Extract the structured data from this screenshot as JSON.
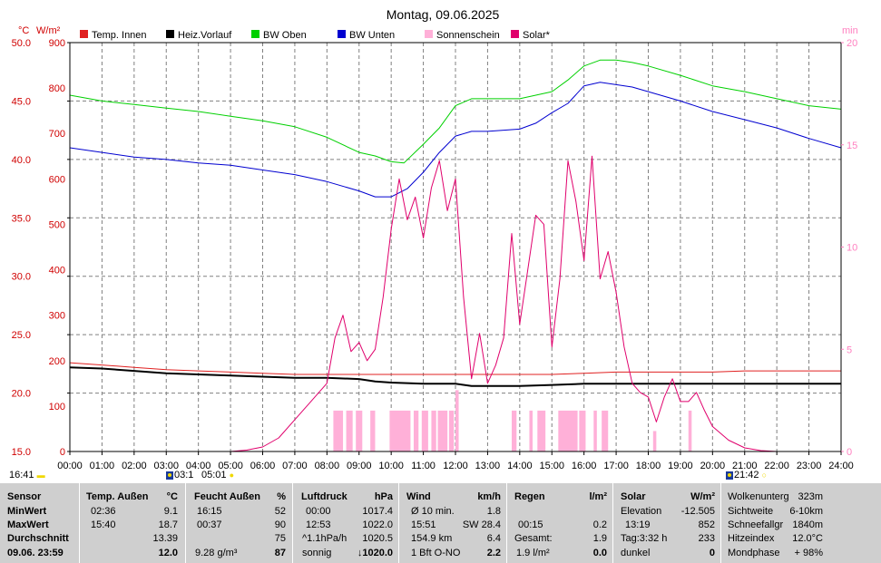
{
  "chart_data": {
    "type": "line",
    "title": "Montag, 09.06.2025",
    "left_axis_units": {
      "temp": "°C",
      "solar": "W/m²"
    },
    "right_axis_units": "min",
    "temp_ticks": [
      "50.0",
      "45.0",
      "40.0",
      "35.0",
      "30.0",
      "25.0",
      "20.0",
      "15.0"
    ],
    "solar_ticks": [
      "900",
      "800",
      "700",
      "600",
      "500",
      "400",
      "300",
      "200",
      "100",
      "0"
    ],
    "min_ticks": [
      "20",
      "15",
      "10",
      "5",
      "0"
    ],
    "x_ticks": [
      "00:00",
      "01:00",
      "02:00",
      "03:00",
      "04:00",
      "05:00",
      "06:00",
      "07:00",
      "08:00",
      "09:00",
      "10:00",
      "11:00",
      "12:00",
      "13:00",
      "14:00",
      "15:00",
      "16:00",
      "17:00",
      "18:00",
      "19:00",
      "20:00",
      "21:00",
      "22:00",
      "23:00",
      "24:00"
    ],
    "ylim_temp": [
      15,
      50
    ],
    "ylim_solar": [
      0,
      900
    ],
    "ylim_min": [
      0,
      20
    ],
    "xlim_hours": [
      0,
      24
    ],
    "legend": [
      {
        "name": "Temp. Innen",
        "color": "#e02020"
      },
      {
        "name": "Heiz.Vorlauf",
        "color": "#000000"
      },
      {
        "name": "BW Oben",
        "color": "#00d000"
      },
      {
        "name": "BW Unten",
        "color": "#0000d0"
      },
      {
        "name": "Sonnenschein",
        "color": "#ffb0d8"
      },
      {
        "name": "Solar*",
        "color": "#e0006c"
      }
    ],
    "series": [
      {
        "name": "BW Oben",
        "axis": "temp",
        "color": "#00d000",
        "points": [
          [
            0,
            45.5
          ],
          [
            1,
            45.0
          ],
          [
            2,
            44.7
          ],
          [
            3,
            44.4
          ],
          [
            4,
            44.1
          ],
          [
            5,
            43.7
          ],
          [
            6,
            43.3
          ],
          [
            7,
            42.8
          ],
          [
            8,
            41.9
          ],
          [
            9,
            40.6
          ],
          [
            9.5,
            40.3
          ],
          [
            10,
            39.8
          ],
          [
            10.4,
            39.7
          ],
          [
            11,
            41.3
          ],
          [
            11.5,
            42.7
          ],
          [
            12,
            44.6
          ],
          [
            12.5,
            45.2
          ],
          [
            13,
            45.2
          ],
          [
            14,
            45.2
          ],
          [
            15,
            45.8
          ],
          [
            15.5,
            46.8
          ],
          [
            16,
            48.0
          ],
          [
            16.5,
            48.5
          ],
          [
            17,
            48.5
          ],
          [
            17.5,
            48.3
          ],
          [
            18,
            48.0
          ],
          [
            19,
            47.2
          ],
          [
            20,
            46.3
          ],
          [
            21,
            45.8
          ],
          [
            22,
            45.2
          ],
          [
            23,
            44.6
          ],
          [
            24,
            44.3
          ]
        ]
      },
      {
        "name": "BW Unten",
        "axis": "temp",
        "color": "#0000d0",
        "points": [
          [
            0,
            41.0
          ],
          [
            1,
            40.6
          ],
          [
            2,
            40.2
          ],
          [
            3,
            40.0
          ],
          [
            4,
            39.7
          ],
          [
            5,
            39.5
          ],
          [
            6,
            39.1
          ],
          [
            7,
            38.7
          ],
          [
            8,
            38.1
          ],
          [
            9,
            37.3
          ],
          [
            9.5,
            36.8
          ],
          [
            10,
            36.8
          ],
          [
            10.5,
            37.5
          ],
          [
            11,
            38.9
          ],
          [
            11.5,
            40.6
          ],
          [
            12,
            42.0
          ],
          [
            12.5,
            42.4
          ],
          [
            13,
            42.4
          ],
          [
            14,
            42.6
          ],
          [
            14.5,
            43.1
          ],
          [
            15,
            44.0
          ],
          [
            15.5,
            44.8
          ],
          [
            16,
            46.3
          ],
          [
            16.5,
            46.6
          ],
          [
            17,
            46.4
          ],
          [
            17.5,
            46.2
          ],
          [
            18,
            45.8
          ],
          [
            19,
            45.0
          ],
          [
            20,
            44.1
          ],
          [
            21,
            43.4
          ],
          [
            22,
            42.7
          ],
          [
            23,
            41.8
          ],
          [
            24,
            41.0
          ]
        ]
      },
      {
        "name": "Temp. Innen",
        "axis": "temp",
        "color": "#e02020",
        "points": [
          [
            0,
            22.6
          ],
          [
            1,
            22.4
          ],
          [
            2,
            22.2
          ],
          [
            3,
            22.0
          ],
          [
            4,
            21.9
          ],
          [
            5,
            21.8
          ],
          [
            6,
            21.7
          ],
          [
            7,
            21.6
          ],
          [
            8,
            21.6
          ],
          [
            9,
            21.6
          ],
          [
            10,
            21.6
          ],
          [
            11,
            21.6
          ],
          [
            12,
            21.6
          ],
          [
            13,
            21.6
          ],
          [
            14,
            21.6
          ],
          [
            15,
            21.6
          ],
          [
            16,
            21.7
          ],
          [
            17,
            21.8
          ],
          [
            18,
            21.8
          ],
          [
            19,
            21.8
          ],
          [
            20,
            21.8
          ],
          [
            21,
            21.9
          ],
          [
            22,
            21.9
          ],
          [
            23,
            21.9
          ],
          [
            24,
            21.9
          ]
        ]
      },
      {
        "name": "Heiz.Vorlauf",
        "axis": "temp",
        "color": "#000000",
        "points": [
          [
            0,
            22.2
          ],
          [
            1,
            22.1
          ],
          [
            2,
            21.9
          ],
          [
            3,
            21.7
          ],
          [
            4,
            21.6
          ],
          [
            5,
            21.5
          ],
          [
            6,
            21.4
          ],
          [
            7,
            21.3
          ],
          [
            8,
            21.3
          ],
          [
            9,
            21.2
          ],
          [
            9.5,
            21.0
          ],
          [
            10,
            20.9
          ],
          [
            11,
            20.8
          ],
          [
            12,
            20.8
          ],
          [
            12.5,
            20.6
          ],
          [
            13,
            20.6
          ],
          [
            14,
            20.6
          ],
          [
            15,
            20.7
          ],
          [
            16,
            20.8
          ],
          [
            17,
            20.8
          ],
          [
            18,
            20.8
          ],
          [
            19,
            20.8
          ],
          [
            20,
            20.8
          ],
          [
            21,
            20.8
          ],
          [
            22,
            20.8
          ],
          [
            23,
            20.8
          ],
          [
            24,
            20.8
          ]
        ]
      },
      {
        "name": "Solar*",
        "axis": "solar",
        "color": "#e0006c",
        "points": [
          [
            5.0,
            0
          ],
          [
            5.5,
            3
          ],
          [
            6.0,
            10
          ],
          [
            6.5,
            30
          ],
          [
            7.0,
            70
          ],
          [
            7.5,
            110
          ],
          [
            8.0,
            150
          ],
          [
            8.25,
            250
          ],
          [
            8.5,
            300
          ],
          [
            8.75,
            220
          ],
          [
            9.0,
            240
          ],
          [
            9.25,
            200
          ],
          [
            9.5,
            225
          ],
          [
            9.75,
            340
          ],
          [
            10.0,
            490
          ],
          [
            10.25,
            600
          ],
          [
            10.5,
            510
          ],
          [
            10.75,
            560
          ],
          [
            11.0,
            470
          ],
          [
            11.25,
            580
          ],
          [
            11.5,
            640
          ],
          [
            11.75,
            530
          ],
          [
            12.0,
            600
          ],
          [
            12.25,
            340
          ],
          [
            12.5,
            160
          ],
          [
            12.75,
            260
          ],
          [
            13.0,
            150
          ],
          [
            13.25,
            190
          ],
          [
            13.5,
            250
          ],
          [
            13.75,
            480
          ],
          [
            14.0,
            280
          ],
          [
            14.25,
            400
          ],
          [
            14.5,
            520
          ],
          [
            14.75,
            500
          ],
          [
            15.0,
            230
          ],
          [
            15.25,
            380
          ],
          [
            15.5,
            640
          ],
          [
            15.75,
            550
          ],
          [
            16.0,
            420
          ],
          [
            16.25,
            650
          ],
          [
            16.5,
            380
          ],
          [
            16.75,
            440
          ],
          [
            17.0,
            350
          ],
          [
            17.25,
            230
          ],
          [
            17.5,
            150
          ],
          [
            17.75,
            130
          ],
          [
            18.0,
            120
          ],
          [
            18.25,
            65
          ],
          [
            18.5,
            120
          ],
          [
            18.75,
            160
          ],
          [
            19.0,
            110
          ],
          [
            19.25,
            110
          ],
          [
            19.5,
            130
          ],
          [
            19.75,
            90
          ],
          [
            20.0,
            55
          ],
          [
            20.5,
            25
          ],
          [
            21.0,
            8
          ],
          [
            21.5,
            2
          ],
          [
            22.0,
            0
          ]
        ]
      }
    ],
    "sunshine_bars": [
      {
        "from": 8.2,
        "to": 8.5,
        "minutes": 2
      },
      {
        "from": 8.6,
        "to": 8.8,
        "minutes": 2
      },
      {
        "from": 8.9,
        "to": 9.1,
        "minutes": 2
      },
      {
        "from": 9.35,
        "to": 9.5,
        "minutes": 2
      },
      {
        "from": 9.95,
        "to": 10.6,
        "minutes": 2
      },
      {
        "from": 10.7,
        "to": 10.85,
        "minutes": 2
      },
      {
        "from": 10.95,
        "to": 11.15,
        "minutes": 2
      },
      {
        "from": 11.25,
        "to": 11.4,
        "minutes": 2
      },
      {
        "from": 11.45,
        "to": 11.75,
        "minutes": 2
      },
      {
        "from": 11.8,
        "to": 11.95,
        "minutes": 2
      },
      {
        "from": 12.0,
        "to": 12.1,
        "minutes": 3
      },
      {
        "from": 13.75,
        "to": 13.9,
        "minutes": 2
      },
      {
        "from": 14.3,
        "to": 14.4,
        "minutes": 2
      },
      {
        "from": 14.55,
        "to": 14.8,
        "minutes": 2
      },
      {
        "from": 15.2,
        "to": 15.8,
        "minutes": 2
      },
      {
        "from": 15.85,
        "to": 16.05,
        "minutes": 2
      },
      {
        "from": 16.3,
        "to": 16.4,
        "minutes": 2
      },
      {
        "from": 16.55,
        "to": 16.75,
        "minutes": 2
      },
      {
        "from": 18.15,
        "to": 18.25,
        "minutes": 1
      },
      {
        "from": 19.25,
        "to": 19.35,
        "minutes": 2
      }
    ]
  },
  "markers": {
    "sunrise": "16:41",
    "moonrise": "03:1",
    "twilight": "05:01",
    "moonset": "21:42"
  },
  "stats": {
    "sensor": {
      "header": "Sensor",
      "rows": [
        "MinWert",
        "MaxWert",
        "Durchschnitt",
        "09.06. 23:59"
      ]
    },
    "temp_aussen": {
      "header": "Temp. Außen",
      "unit": "°C",
      "times": [
        "02:36",
        "15:40",
        ""
      ],
      "values": [
        "9.1",
        "18.7",
        "13.39"
      ],
      "current": "12.0"
    },
    "feucht_aussen": {
      "header": "Feucht Außen",
      "unit": "%",
      "times": [
        "16:15",
        "00:37",
        ""
      ],
      "values": [
        "52",
        "90",
        "75"
      ],
      "current_left": "9.28 g/m³",
      "current": "87"
    },
    "luftdruck": {
      "header": "Luftdruck",
      "unit": "hPa",
      "times": [
        "00:00",
        "12:53",
        "^1.1hPa/h"
      ],
      "values": [
        "1017.4",
        "1022.0",
        "1020.5"
      ],
      "current_left": "sonnig",
      "current": "↓1020.0"
    },
    "wind": {
      "header": "Wind",
      "unit": "km/h",
      "times": [
        "Ø 10 min.",
        "15:51",
        "154.9 km"
      ],
      "values": [
        "1.8",
        "SW 28.4",
        "6.4"
      ],
      "current_left": "1 Bft O-NO",
      "current": "2.2"
    },
    "regen": {
      "header": "Regen",
      "unit": "l/m²",
      "times": [
        "",
        "00:15",
        "Gesamt:"
      ],
      "values": [
        "",
        "0.2",
        "1.9"
      ],
      "current_left": "1.9 l/m²",
      "current": "0.0"
    },
    "solar": {
      "header": "Solar",
      "unit": "W/m²",
      "times": [
        "Elevation",
        "13:19",
        "Tag:3:32 h"
      ],
      "values": [
        "-12.505",
        "852",
        "233"
      ],
      "current_left": "dunkel",
      "current": "0"
    },
    "extra": {
      "labels": [
        "Wolkenunterg",
        "Sichtweite",
        "Schneefallgr",
        "Hitzeindex",
        "Mondphase"
      ],
      "values": [
        "323m",
        "6-10km",
        "1840m",
        "12.0°C",
        "+ 98%"
      ]
    }
  }
}
